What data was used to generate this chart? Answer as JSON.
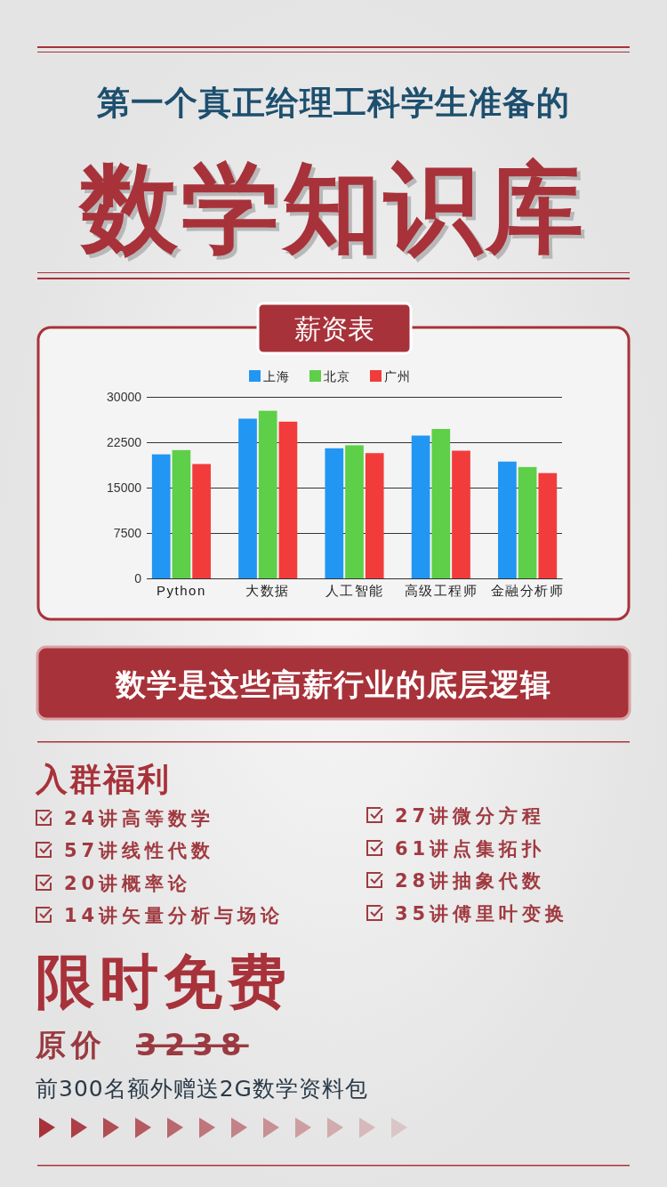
{
  "chart_data": {
    "type": "bar",
    "title": "薪资表",
    "categories": [
      "Python",
      "大数据",
      "人工智能",
      "高级工程师",
      "金融分析师"
    ],
    "series": [
      {
        "name": "上海",
        "color": "#2196f3",
        "values": [
          20500,
          26400,
          21500,
          23600,
          19300
        ]
      },
      {
        "name": "北京",
        "color": "#5ecf48",
        "values": [
          21200,
          27700,
          22000,
          24700,
          18400
        ]
      },
      {
        "name": "广州",
        "color": "#f23c3c",
        "values": [
          18900,
          25900,
          20700,
          21100,
          17400
        ]
      }
    ],
    "ylim": [
      0,
      30000
    ],
    "yticks": [
      0,
      7500,
      15000,
      22500,
      30000
    ],
    "grid": "y",
    "legend": "top",
    "annotations": [
      "第一个真正给理工科学生准备的",
      "数学知识库",
      "数学是这些高薪行业的底层逻辑",
      "入群福利",
      "24讲高等数学",
      "57讲线性代数",
      "20讲概率论",
      "14讲矢量分析与场论",
      "27讲微分方程",
      "61讲点集拓扑",
      "28讲抽象代数",
      "35讲傅里叶变换",
      "限时免费",
      "原价",
      "3238",
      "前300名额外赠送2G数学资料包"
    ]
  }
}
